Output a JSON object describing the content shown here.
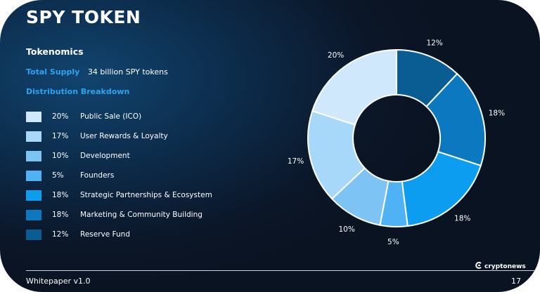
{
  "title": "SPY TOKEN",
  "section_heading": "Tokenomics",
  "total_supply": {
    "label": "Total Supply",
    "value": "34 billion SPY tokens"
  },
  "distribution_heading": "Distribution Breakdown",
  "footer": {
    "text": "Whitepaper v1.0",
    "page": "17"
  },
  "brand": {
    "name": "cryptonews",
    "icon": "cryptonews-logo-icon"
  },
  "chart_data": {
    "type": "pie",
    "donut": true,
    "slices": [
      {
        "label": "Public Sale (ICO)",
        "value": 20,
        "display": "20%",
        "color": "#cfe8fb"
      },
      {
        "label": "User Rewards & Loyalty",
        "value": 17,
        "display": "17%",
        "color": "#a7d7f9"
      },
      {
        "label": "Development",
        "value": 10,
        "display": "10%",
        "color": "#7dc3f4"
      },
      {
        "label": "Founders",
        "value": 5,
        "display": "5%",
        "color": "#4fb2f5"
      },
      {
        "label": "Strategic Partnerships & Ecosystem",
        "value": 18,
        "display": "18%",
        "color": "#0c9cf0"
      },
      {
        "label": "Marketing & Community Building",
        "value": 18,
        "display": "18%",
        "color": "#0b78c0"
      },
      {
        "label": "Reserve Fund",
        "value": 12,
        "display": "12%",
        "color": "#0a5d93"
      }
    ],
    "order_clockwise_from_top": [
      "Reserve Fund",
      "Marketing & Community Building",
      "Strategic Partnerships & Ecosystem",
      "Founders",
      "Development",
      "User Rewards & Loyalty",
      "Public Sale (ICO)"
    ]
  }
}
